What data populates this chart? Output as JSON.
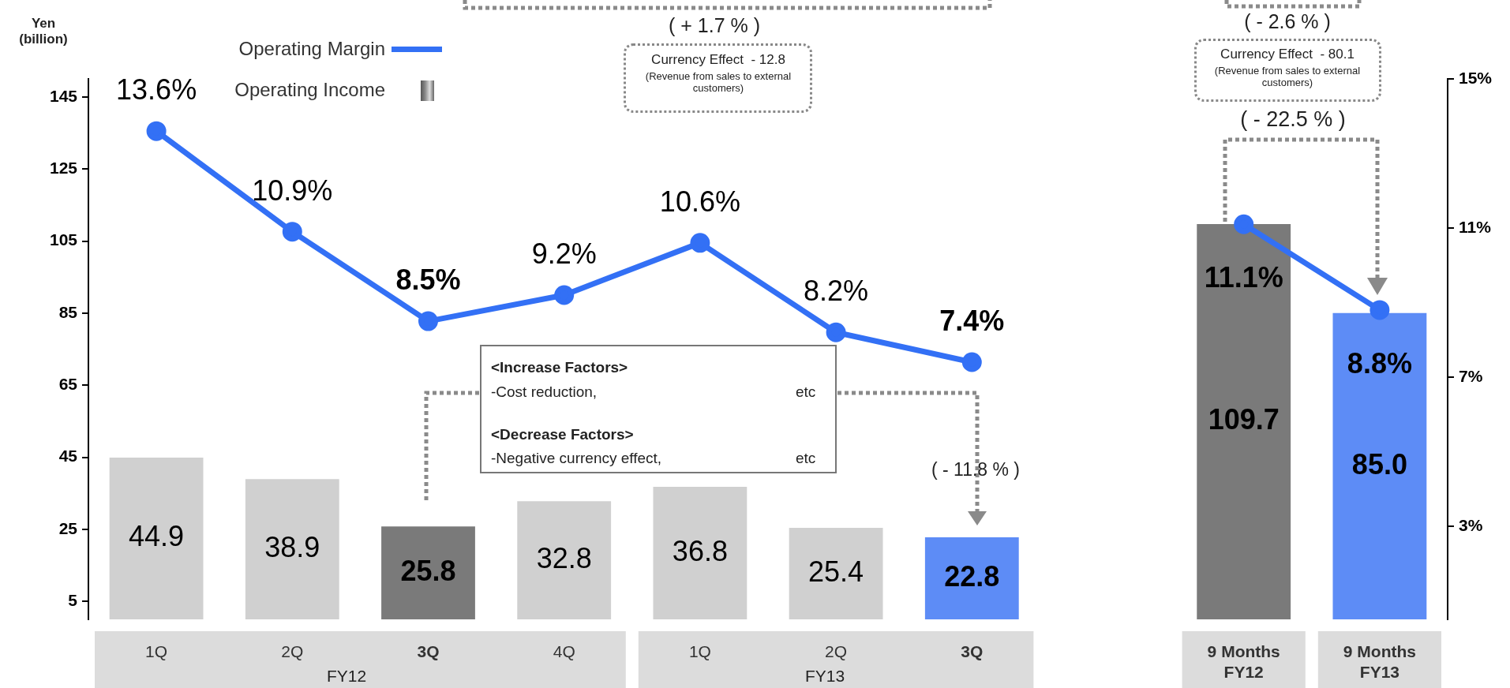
{
  "chart_data": {
    "type": "bar",
    "ylabel": "Yen (billion)",
    "categories": [
      "1Q",
      "2Q",
      "3Q",
      "4Q",
      "1Q",
      "2Q",
      "3Q",
      null,
      "9 Months FY12",
      "9 Months FY13"
    ],
    "series": [
      {
        "name": "Operating Income",
        "color": "#8a8a8a",
        "colors": [
          "#d0d0d0",
          "#d0d0d0",
          "#7a7a7a",
          "#d0d0d0",
          "#d0d0d0",
          "#d0d0d0",
          "#5d8cf6",
          "#d0d0d0",
          "#7a7a7a",
          "#5d8cf6"
        ],
        "values": [
          44.9,
          38.9,
          25.8,
          32.8,
          36.8,
          25.4,
          22.8,
          null,
          109.7,
          85.0
        ],
        "value_labels": [
          "44.9",
          "38.9",
          "25.8",
          "32.8",
          "36.8",
          "25.4",
          "22.8",
          null,
          "109.7",
          "85.0"
        ]
      },
      {
        "name": "Operating Margin",
        "type": "line",
        "axis": "y2",
        "color": "#3370f5",
        "values": [
          13.6,
          10.9,
          8.5,
          9.2,
          10.6,
          8.2,
          7.4,
          null,
          11.1,
          8.8
        ],
        "value_labels": [
          "13.6%",
          "10.9%",
          "8.5%",
          "9.2%",
          "10.6%",
          "8.2%",
          "7.4%",
          null,
          "11.1%",
          "8.8%"
        ]
      }
    ],
    "ylim": [
      0,
      150
    ],
    "yticks": [
      5,
      25,
      45,
      65,
      85,
      105,
      125,
      145
    ],
    "y2lim": [
      0.5,
      15
    ],
    "y2ticks": [
      {
        "value": 3,
        "label": "3%"
      },
      {
        "value": 7,
        "label": "7%"
      },
      {
        "value": 11,
        "label": "11%"
      },
      {
        "value": 15,
        "label": "15%"
      }
    ],
    "legend": "top left",
    "marker": "circle",
    "grid": false,
    "annotations": [
      "( + 1.7 % )",
      "Currency Effect  - 12.8",
      "(Revenue from sales to external customers)",
      "( - 2.6 % )",
      "Currency Effect  - 80.1",
      "(Revenue from sales to external customers)",
      "( - 22.5 % )",
      "<Increase Factors>",
      "-Cost reduction,",
      "etc",
      "<Decrease Factors>",
      "-Negative currency effect,",
      "etc",
      "( - 11.8 % )",
      "FY12",
      "FY13"
    ]
  }
}
